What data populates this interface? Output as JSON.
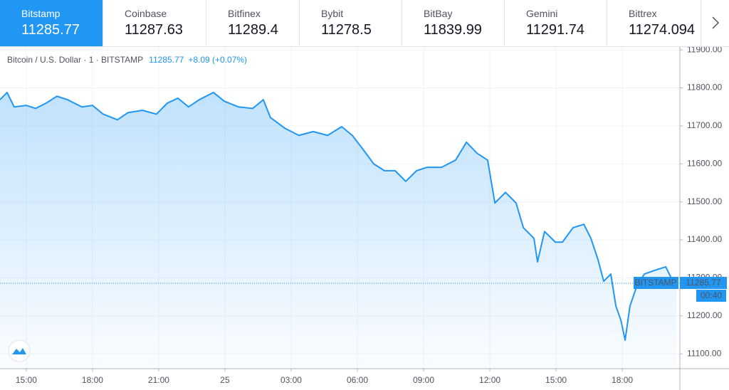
{
  "tabs": [
    {
      "name": "Bitstamp",
      "price": 11285.77
    },
    {
      "name": "Coinbase",
      "price": 11287.63
    },
    {
      "name": "Bitfinex",
      "price": 11289.4
    },
    {
      "name": "Bybit",
      "price": 11278.5
    },
    {
      "name": "BitBay",
      "price": 11839.99
    },
    {
      "name": "Gemini",
      "price": 11291.74
    },
    {
      "name": "Bittrex",
      "price": 11274.094
    }
  ],
  "chart_data": {
    "type": "area",
    "title": "Bitcoin / U.S. Dollar · 1 · BITSTAMP",
    "last_price": 11285.77,
    "change": "+8.09 (+0.07%)",
    "price_line_label": "BITSTAMP",
    "countdown": "00:40",
    "x": [
      13.81,
      14.13,
      14.45,
      15,
      15.42,
      15.9,
      16.39,
      16.87,
      17.52,
      18,
      18.48,
      19.13,
      19.61,
      20.26,
      20.9,
      21.39,
      21.87,
      22.35,
      22.84,
      23.48,
      23.97,
      24.61,
      25.26,
      25.74,
      26.06,
      26.71,
      27.35,
      28,
      28.65,
      29.29,
      29.77,
      30.26,
      30.74,
      31.23,
      31.71,
      32.19,
      32.68,
      33.16,
      33.81,
      34.45,
      34.94,
      35.42,
      35.9,
      36.23,
      36.71,
      37.19,
      37.52,
      38,
      38.16,
      38.48,
      38.97,
      39.29,
      39.77,
      40.26,
      40.58,
      40.9,
      41.16,
      41.48,
      41.71,
      41.94,
      42.13,
      42.35,
      42.68,
      43,
      43.48,
      43.97,
      44.29,
      44.45
    ],
    "series": [
      {
        "color": "#2196f3",
        "values": [
          11769,
          11788,
          11750,
          11754,
          11746,
          11760,
          11778,
          11769,
          11750,
          11754,
          11731,
          11716,
          11735,
          11741,
          11731,
          11760,
          11773,
          11750,
          11769,
          11788,
          11765,
          11750,
          11746,
          11769,
          11722,
          11694,
          11675,
          11685,
          11675,
          11698,
          11675,
          11638,
          11600,
          11582,
          11582,
          11554,
          11582,
          11591,
          11591,
          11610,
          11657,
          11628,
          11610,
          11497,
          11525,
          11497,
          11432,
          11404,
          11342,
          11422,
          11394,
          11394,
          11432,
          11441,
          11404,
          11348,
          11291,
          11310,
          11226,
          11188,
          11136,
          11226,
          11282,
          11310,
          11320,
          11329,
          11291,
          11286
        ]
      }
    ],
    "xlim": [
      13.81,
      44.61
    ],
    "ylim": [
      11061,
      11904
    ],
    "xticks": [
      {
        "value": 15,
        "label": "15:00"
      },
      {
        "value": 18,
        "label": "18:00"
      },
      {
        "value": 21,
        "label": "21:00"
      },
      {
        "value": 24,
        "label": "25"
      },
      {
        "value": 27,
        "label": "03:00"
      },
      {
        "value": 30,
        "label": "06:00"
      },
      {
        "value": 33,
        "label": "09:00"
      },
      {
        "value": 36,
        "label": "12:00"
      },
      {
        "value": 39,
        "label": "15:00"
      },
      {
        "value": 42,
        "label": "18:00"
      }
    ],
    "yticks": [
      {
        "value": 11100,
        "label": "11100.00"
      },
      {
        "value": 11200,
        "label": "11200.00"
      },
      {
        "value": 11300,
        "label": "11300.00"
      },
      {
        "value": 11400,
        "label": "11400.00"
      },
      {
        "value": 11500,
        "label": "11500.00"
      },
      {
        "value": 11600,
        "label": "11600.00"
      },
      {
        "value": 11700,
        "label": "11700.00"
      },
      {
        "value": 11800,
        "label": "11800.00"
      },
      {
        "value": 11900,
        "label": "11900.00"
      }
    ],
    "grid": true
  }
}
